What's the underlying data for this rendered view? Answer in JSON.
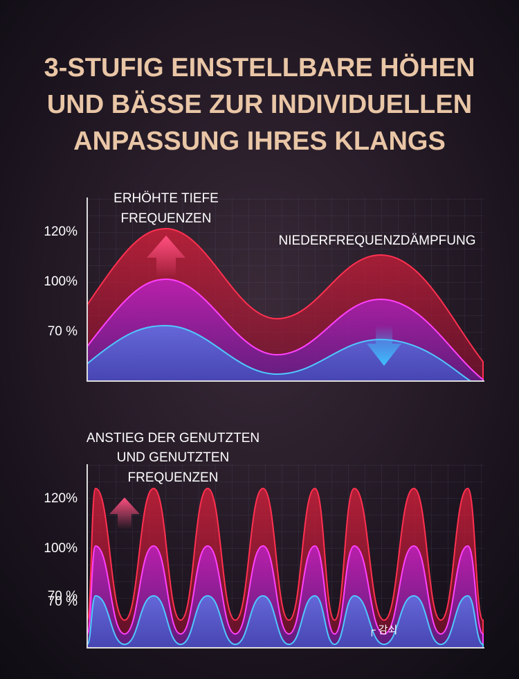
{
  "title": [
    "3-STUFIG EINSTELLBARE HÖHEN",
    "UND BÄSSE ZUR INDIVIDUELLEN",
    "ANPASSUNG IHRES KLANGS"
  ],
  "panels": [
    {
      "labels": [
        "ERHÖHTE TIEFE",
        "FREQUENZEN"
      ],
      "annotation": "NIEDERFREQUENZDÄMPFUNG",
      "y_labels": [
        "120%",
        "100%",
        "70 %"
      ]
    },
    {
      "labels": [
        "ANSTIEG DER GENUTZTEN",
        "UND GENUTZTEN",
        "FREQUENZEN"
      ],
      "y_labels": [
        "120%",
        "100%",
        "70 %",
        "70 %"
      ],
      "annotation": "┌ 감쇠"
    }
  ]
}
